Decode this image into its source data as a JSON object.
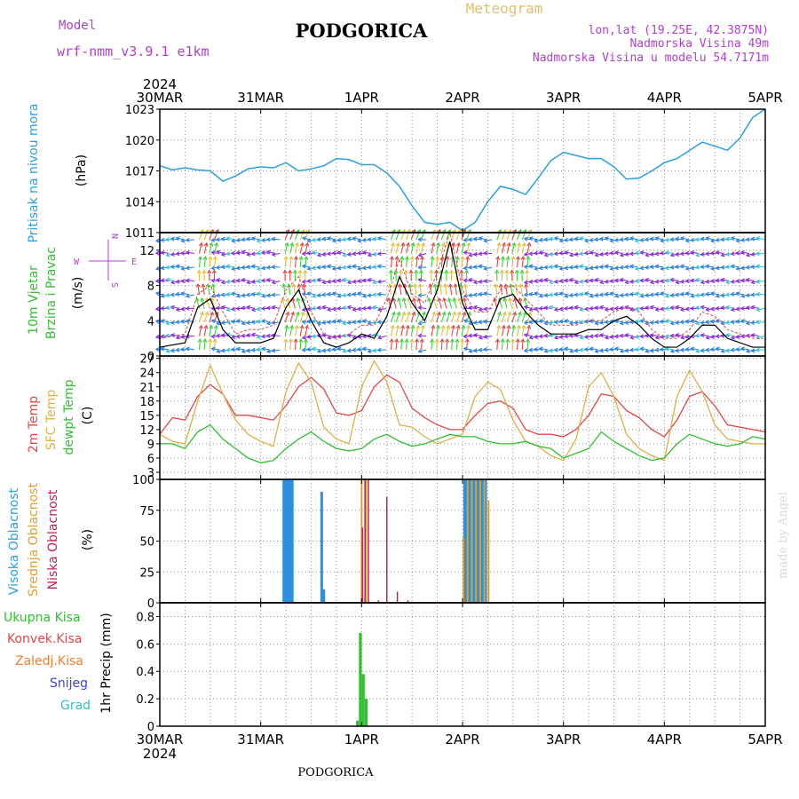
{
  "header": {
    "model_label": "Model",
    "model_name": "wrf-nmm_v3.9.1  e1km",
    "title": "PODGORICA",
    "subtitle": "Meteogram",
    "lonlat": "lon,lat (19.25E, 42.3875N)",
    "elevation": "Nadmorska Visina 49m",
    "model_elevation": "Nadmorska Visina u modelu 54.7171m",
    "watermark": "made by Angel",
    "footer_title": "PODGORICA"
  },
  "colors": {
    "pressure": "#2aa0e0",
    "temp2m": "#e04848",
    "sfc_temp": "#e0b048",
    "dewpt": "#30c030",
    "high_cloud": "#2a90e0",
    "mid_cloud": "#e0a030",
    "low_cloud": "#c02060",
    "total_precip": "#30c030",
    "convective": "#e04848",
    "freezing": "#f08030",
    "snow": "#4040e0",
    "grad": "#30c0c0",
    "wind_label": "#30c030",
    "wind_dir": "#b040d0"
  },
  "time_axis": {
    "year": "2024",
    "ticks": [
      "30MAR",
      "31MAR",
      "1APR",
      "2APR",
      "3APR",
      "4APR",
      "5APR"
    ]
  },
  "chart_data": [
    {
      "type": "line",
      "panel": "pressure",
      "ylabel": "(hPa)",
      "side_label": "Pritisak na nivou mora",
      "ylim": [
        1011,
        1023
      ],
      "yticks": [
        1011,
        1014,
        1017,
        1020,
        1023
      ],
      "grid": true,
      "x": [
        0,
        3,
        6,
        9,
        12,
        15,
        18,
        21,
        24,
        27,
        30,
        33,
        36,
        39,
        42,
        45,
        48,
        51,
        54,
        57,
        60,
        63,
        66,
        69,
        72,
        75,
        78,
        81,
        84,
        87,
        90,
        93,
        96,
        99,
        102,
        105,
        108,
        111,
        114,
        117,
        120,
        123,
        126,
        129,
        132,
        135,
        138,
        141,
        144
      ],
      "series": [
        {
          "name": "Pritisak na nivou mora",
          "values": [
            1017.5,
            1017.1,
            1017.3,
            1017.1,
            1017.0,
            1016.0,
            1016.5,
            1017.2,
            1017.4,
            1017.3,
            1017.8,
            1017.0,
            1017.2,
            1017.5,
            1018.2,
            1018.1,
            1017.6,
            1017.6,
            1016.8,
            1015.5,
            1013.6,
            1012.0,
            1011.8,
            1012.0,
            1011.2,
            1012.0,
            1014.0,
            1015.5,
            1015.2,
            1014.7,
            1016.3,
            1018.0,
            1018.8,
            1018.5,
            1018.2,
            1018.2,
            1017.4,
            1016.2,
            1016.3,
            1017.0,
            1017.8,
            1018.2,
            1019.0,
            1019.8,
            1019.4,
            1019.0,
            1020.2,
            1022.2,
            1023.0
          ]
        }
      ]
    },
    {
      "type": "line",
      "panel": "wind",
      "ylabel": "(m/s)",
      "side_label": [
        "10m Vjetar",
        "Brzina i Pravac"
      ],
      "compass": {
        "n": "N",
        "s": "S",
        "e": "E",
        "w": "W"
      },
      "ylim": [
        0,
        14
      ],
      "yticks": [
        0,
        4,
        8,
        12
      ],
      "grid": true,
      "x": [
        0,
        6,
        9,
        12,
        15,
        18,
        21,
        24,
        27,
        30,
        33,
        36,
        39,
        42,
        45,
        48,
        51,
        54,
        57,
        60,
        63,
        66,
        69,
        72,
        75,
        78,
        81,
        84,
        87,
        90,
        93,
        96,
        99,
        102,
        105,
        108,
        111,
        114,
        117,
        120,
        123,
        126,
        129,
        132,
        135,
        138,
        141,
        144
      ],
      "series": [
        {
          "name": "speed",
          "values": [
            1.0,
            1.5,
            5.5,
            6.5,
            3.0,
            1.5,
            1.5,
            1.5,
            2.0,
            5.5,
            7.5,
            4.0,
            1.5,
            1.0,
            1.5,
            2.5,
            2.0,
            4.5,
            9.0,
            6.0,
            4.0,
            7.5,
            13.0,
            6.0,
            3.0,
            3.0,
            6.5,
            7.0,
            5.0,
            3.5,
            2.5,
            2.5,
            2.5,
            3.0,
            3.0,
            4.0,
            4.5,
            3.5,
            2.0,
            1.0,
            1.0,
            2.0,
            3.5,
            3.5,
            2.0,
            1.5,
            1.0,
            1.0
          ]
        },
        {
          "name": "gust",
          "values": [
            2.0,
            2.5,
            7.0,
            8.0,
            5.0,
            2.5,
            3.0,
            3.0,
            3.5,
            7.5,
            9.0,
            5.0,
            2.5,
            2.0,
            2.5,
            3.5,
            3.5,
            6.5,
            11.0,
            7.0,
            6.0,
            9.5,
            14.0,
            7.5,
            5.0,
            5.0,
            7.5,
            8.0,
            6.5,
            5.0,
            3.5,
            3.5,
            3.5,
            4.0,
            4.0,
            5.0,
            5.5,
            5.0,
            3.0,
            2.0,
            2.0,
            3.0,
            5.0,
            4.5,
            3.0,
            2.5,
            2.0,
            2.0
          ]
        }
      ]
    },
    {
      "type": "line",
      "panel": "temperature",
      "ylabel": "(C)",
      "side_label": [
        "2m Temp",
        "SFC Temp",
        "dewpt Temp"
      ],
      "ylim": [
        1.5,
        27.5
      ],
      "yticks": [
        3,
        6,
        9,
        12,
        15,
        18,
        21,
        24,
        27
      ],
      "grid": true,
      "x": [
        0,
        3,
        6,
        9,
        12,
        15,
        18,
        21,
        24,
        27,
        30,
        33,
        36,
        39,
        42,
        45,
        48,
        51,
        54,
        57,
        60,
        63,
        66,
        69,
        72,
        75,
        78,
        81,
        84,
        87,
        90,
        93,
        96,
        99,
        102,
        105,
        108,
        111,
        114,
        117,
        120,
        123,
        126,
        129,
        132,
        135,
        138,
        141,
        144
      ],
      "series": [
        {
          "name": "2m Temp",
          "values": [
            11,
            14.5,
            14,
            19,
            21.5,
            19.5,
            15,
            15,
            14.5,
            14,
            17,
            21,
            23,
            20.5,
            15.5,
            15,
            16,
            21,
            23.5,
            22,
            16.5,
            14.5,
            13,
            12,
            12,
            15,
            17.5,
            18,
            16.5,
            12,
            11,
            11,
            10.5,
            12,
            15,
            19.5,
            19,
            16,
            14.5,
            12,
            10.5,
            14,
            19,
            20,
            17,
            13,
            12.5,
            12,
            11.5
          ]
        },
        {
          "name": "SFC Temp",
          "values": [
            11,
            9.5,
            9,
            18,
            25.5,
            19.5,
            14,
            11,
            9.5,
            8.5,
            20,
            26,
            22,
            12.5,
            10,
            9,
            21,
            26.5,
            22,
            13,
            12.5,
            10.5,
            9,
            10,
            11,
            19,
            22,
            20.5,
            14,
            9.5,
            8.5,
            6.5,
            5.5,
            10,
            21,
            24,
            19,
            11,
            8,
            6.5,
            5.5,
            19,
            24.5,
            20,
            13,
            10,
            9.5,
            9,
            9
          ]
        },
        {
          "name": "dewpt Temp",
          "values": [
            9,
            9,
            8,
            11.5,
            13,
            10,
            8,
            6,
            5,
            5.5,
            8,
            10,
            11.5,
            9.5,
            8,
            7.5,
            8,
            10,
            11,
            9.5,
            8.5,
            9,
            10,
            11,
            10.5,
            10.5,
            9.5,
            9,
            9,
            9.5,
            8.5,
            8,
            6,
            7,
            8,
            11.5,
            9.5,
            8,
            6.5,
            5.5,
            6,
            9,
            11,
            10,
            9,
            8.5,
            9,
            10.5,
            10
          ]
        }
      ]
    },
    {
      "type": "bar",
      "panel": "cloud",
      "ylabel": "(%)",
      "side_label": [
        "Visoka Oblacnost",
        "Srednja Oblacnost",
        "Niska Oblacnost"
      ],
      "ylim": [
        0,
        100
      ],
      "yticks": [
        0,
        25,
        50,
        75,
        100
      ],
      "grid": true,
      "series": [
        {
          "name": "Visoka Oblacnost",
          "x": [
            29.5,
            30.0,
            30.5,
            31.0,
            31.5,
            38.5,
            39.0,
            72.5,
            73.0,
            73.5,
            74.0,
            74.5,
            75.0,
            75.5,
            76.0,
            76.5,
            77.0,
            77.5
          ],
          "values": [
            100,
            100,
            100,
            100,
            100,
            90,
            11,
            100,
            100,
            100,
            100,
            100,
            100,
            100,
            100,
            100,
            100,
            100
          ]
        },
        {
          "name": "Srednja Oblacnost",
          "x": [
            48.0,
            49.0,
            72.2,
            73.2,
            74.2,
            75.2,
            76.2,
            77.2,
            78.2
          ],
          "values": [
            100,
            100,
            53,
            100,
            100,
            100,
            100,
            100,
            83
          ]
        },
        {
          "name": "Niska Oblacnost",
          "x": [
            48.2,
            48.8,
            49.6,
            52.0,
            54.0,
            56.5,
            59.0
          ],
          "values": [
            61,
            100,
            100,
            2,
            86,
            9,
            2
          ]
        }
      ]
    },
    {
      "type": "bar",
      "panel": "precip",
      "ylabel": "1hr Precip (mm)",
      "side_label": [
        "Ukupna Kisa",
        "Konvek.Kisa",
        "Zaledj.Kisa",
        "Snijeg",
        "Grad"
      ],
      "ylim": [
        0,
        0.9
      ],
      "yticks": [
        0,
        0.2,
        0.4,
        0.6,
        0.8
      ],
      "grid": true,
      "series": [
        {
          "name": "Ukupna Kisa",
          "x": [
            47.0,
            47.7,
            48.4,
            49.1
          ],
          "values": [
            0.04,
            0.68,
            0.38,
            0.2
          ]
        }
      ]
    }
  ]
}
